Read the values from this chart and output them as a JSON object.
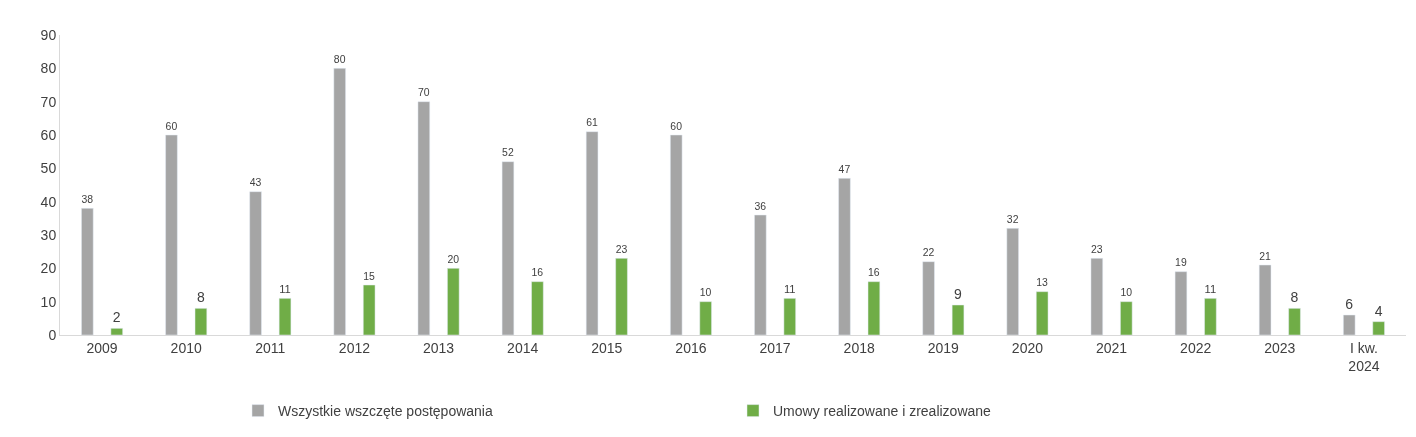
{
  "chart_data": {
    "type": "bar",
    "categories": [
      "2009",
      "2010",
      "2011",
      "2012",
      "2013",
      "2014",
      "2015",
      "2016",
      "2017",
      "2018",
      "2019",
      "2020",
      "2021",
      "2022",
      "2023",
      "I kw.\n2024"
    ],
    "series": [
      {
        "name": "Wszystkie wszczęte postępowania",
        "color": "#a5a5a5",
        "values": [
          38,
          60,
          43,
          80,
          70,
          52,
          61,
          60,
          36,
          47,
          22,
          32,
          23,
          19,
          21,
          6
        ]
      },
      {
        "name": "Umowy realizowane i zrealizowane",
        "color": "#70ad47",
        "values": [
          2,
          8,
          11,
          15,
          20,
          16,
          23,
          10,
          11,
          16,
          9,
          13,
          10,
          11,
          8,
          4
        ]
      }
    ],
    "ylim": [
      0,
      90
    ],
    "yticks": [
      0,
      10,
      20,
      30,
      40,
      50,
      60,
      70,
      80,
      90
    ],
    "data_labels": true,
    "grid": false,
    "legend": "bottom"
  }
}
